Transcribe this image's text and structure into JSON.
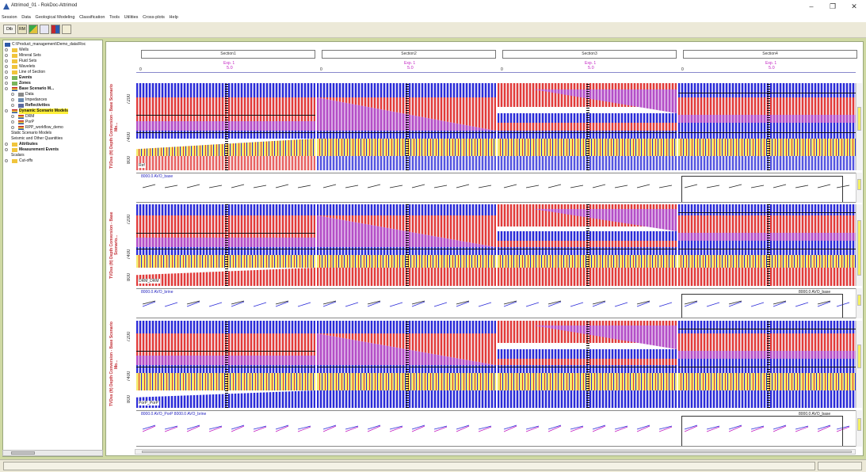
{
  "window": {
    "title": "Attrimod_01 - RokDoc-Attrimod",
    "controls": [
      "–",
      "❐",
      "✕"
    ]
  },
  "menu": [
    "Session",
    "Data",
    "Geological Modeling",
    "Classification",
    "Tools",
    "Utilities",
    "Cross-plots",
    "Help"
  ],
  "toolbar": {
    "buttons": [
      "Dtb",
      "RM",
      "",
      "",
      "",
      ""
    ]
  },
  "tree": {
    "items": [
      {
        "label": "C:\\Product_management\\Demo_data\\Roc",
        "bold": false,
        "hl": false
      },
      {
        "label": "Wells",
        "bold": false,
        "hl": false
      },
      {
        "label": "Mineral Sets",
        "bold": false,
        "hl": false
      },
      {
        "label": "Fluid Sets",
        "bold": false,
        "hl": false
      },
      {
        "label": "Wavelets",
        "bold": false,
        "hl": false
      },
      {
        "label": "Line of Section",
        "bold": false,
        "hl": false
      },
      {
        "label": "Events",
        "bold": true,
        "hl": false
      },
      {
        "label": "Zones",
        "bold": true,
        "hl": false
      },
      {
        "label": "Base Scenario M...",
        "bold": true,
        "hl": false
      },
      {
        "label": "Data",
        "bold": false,
        "hl": false
      },
      {
        "label": "Impedances",
        "bold": false,
        "hl": false
      },
      {
        "label": "Reflectivities",
        "bold": true,
        "hl": false
      },
      {
        "label": "Dynamic Scenario Models",
        "bold": true,
        "hl": true
      },
      {
        "label": "DRM",
        "bold": false,
        "hl": false
      },
      {
        "label": "PorP",
        "bold": false,
        "hl": false
      },
      {
        "label": "RPP_workflow_demo",
        "bold": false,
        "hl": false
      },
      {
        "label": "Static Scenario Models",
        "bold": false,
        "hl": false
      },
      {
        "label": "Seismic and Other Quantities",
        "bold": false,
        "hl": false
      },
      {
        "label": "Attributes",
        "bold": true,
        "hl": false
      },
      {
        "label": "Measurement Events",
        "bold": true,
        "hl": false
      },
      {
        "label": "Scalars",
        "bold": false,
        "hl": false
      },
      {
        "label": "Cut-offs",
        "bold": false,
        "hl": false
      }
    ]
  },
  "sections": [
    {
      "name": "Section1",
      "exp": "Exp. 1",
      "exp_val": "5.0",
      "zero": "0"
    },
    {
      "name": "Section2",
      "exp": "Exp. 1",
      "exp_val": "5.0",
      "zero": "0"
    },
    {
      "name": "Section3",
      "exp": "Exp. 1",
      "exp_val": "5.0",
      "zero": "0"
    },
    {
      "name": "Section4",
      "exp": "Exp. 1",
      "exp_val": "5.0",
      "zero": "0"
    }
  ],
  "tracks": [
    {
      "side_label": "TVDss (ft)\nDepth Conversion - Base Scenario Mo...",
      "ticks": [
        "7200",
        "7400",
        "800"
      ],
      "tag": "Ref"
    },
    {
      "side_label": "TVDss (ft)\nDepth Conversion - Base Scenario...",
      "ticks": [
        "7200",
        "7400",
        "800"
      ],
      "tag": "DRM_DRM"
    },
    {
      "side_label": "TVDss (ft)\nDepth Conversion - Base Scenario Mo...",
      "ticks": [
        "7200",
        "7400",
        "800"
      ],
      "tag": "PorP_PorP"
    }
  ],
  "avo_strips": [
    {
      "left_label": "8000.0 AVO_base",
      "right_label": ""
    },
    {
      "left_label": "8000.0 AVO_brine",
      "right_label": "8000.0 AVO_base"
    },
    {
      "left_label": "8000.0 AVO_PorP   8000.0 AVO_brine",
      "right_label": "8000.0 AVO_base"
    }
  ],
  "colors": {
    "accent_green": "#cfd9a3",
    "highlight": "#ffef3a",
    "exp_magenta": "#c21ec2",
    "label_red": "#c0282f"
  }
}
